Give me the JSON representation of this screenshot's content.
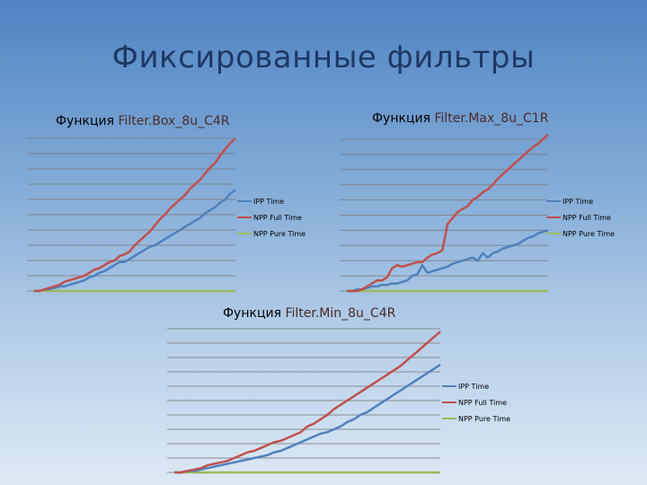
{
  "slide": {
    "title": "Фиксированные фильтры"
  },
  "colors": {
    "ipp": "#4f81bd",
    "npp_full": "#c0504d",
    "npp_pure": "#9bbb59",
    "grid": "#7f7f7f"
  },
  "chart_data": [
    {
      "type": "line",
      "title_prefix": "Функция ",
      "title_name": "Filter.Box_8u_C4R",
      "xlabel": "",
      "ylabel": "",
      "ylim": [
        0,
        100
      ],
      "grid": true,
      "legend_position": "right",
      "series": [
        {
          "name": "IPP Time",
          "color": "#4f81bd",
          "values": [
            0,
            0,
            1,
            1,
            2,
            3,
            3,
            4,
            5,
            6,
            7,
            9,
            10,
            12,
            13,
            15,
            17,
            19,
            19,
            21,
            23,
            25,
            27,
            29,
            30,
            32,
            34,
            36,
            38,
            40,
            42,
            44,
            46,
            48,
            51,
            53,
            55,
            58,
            60,
            64,
            66
          ]
        },
        {
          "name": "NPP Full Time",
          "color": "#c0504d",
          "values": [
            0,
            0,
            1,
            2,
            3,
            4,
            6,
            7,
            8,
            9,
            10,
            12,
            14,
            15,
            17,
            19,
            20,
            23,
            24,
            26,
            30,
            33,
            36,
            39,
            43,
            47,
            50,
            54,
            57,
            60,
            63,
            67,
            70,
            73,
            77,
            81,
            84,
            89,
            93,
            97,
            100
          ]
        },
        {
          "name": "NPP Pure Time",
          "color": "#9bbb59",
          "values": [
            0,
            0,
            0,
            0,
            0,
            0,
            0,
            0,
            0,
            0,
            0,
            0,
            0,
            0,
            0,
            0,
            0,
            0,
            0,
            0,
            0,
            0,
            0,
            0,
            0,
            0,
            0,
            0,
            0,
            0,
            0,
            0,
            0,
            0,
            0,
            0,
            0,
            0,
            0,
            0,
            0
          ]
        }
      ]
    },
    {
      "type": "line",
      "title_prefix": "Функция ",
      "title_name": "Filter.Max_8u_C1R",
      "xlabel": "",
      "ylabel": "",
      "ylim": [
        0,
        100
      ],
      "grid": true,
      "legend_position": "right",
      "series": [
        {
          "name": "IPP Time",
          "color": "#4f81bd",
          "values": [
            0,
            0,
            1,
            1,
            2,
            3,
            3,
            4,
            4,
            5,
            5,
            6,
            7,
            10,
            11,
            17,
            12,
            13,
            14,
            15,
            16,
            18,
            19,
            20,
            21,
            22,
            20,
            25,
            22,
            25,
            26,
            28,
            29,
            30,
            31,
            33,
            35,
            36,
            38,
            39,
            40
          ]
        },
        {
          "name": "NPP Full Time",
          "color": "#c0504d",
          "values": [
            0,
            0,
            0,
            1,
            3,
            5,
            7,
            7,
            9,
            15,
            17,
            16,
            17,
            18,
            19,
            19,
            22,
            24,
            25,
            27,
            44,
            48,
            52,
            54,
            56,
            60,
            62,
            65,
            67,
            70,
            74,
            77,
            80,
            83,
            86,
            89,
            92,
            95,
            97,
            100,
            103
          ]
        },
        {
          "name": "NPP Pure Time",
          "color": "#9bbb59",
          "values": [
            0,
            0,
            0,
            0,
            0,
            0,
            0,
            0,
            0,
            0,
            0,
            0,
            0,
            0,
            0,
            0,
            0,
            0,
            0,
            0,
            0,
            0,
            0,
            0,
            0,
            0,
            0,
            0,
            0,
            0,
            0,
            0,
            0,
            0,
            0,
            0,
            0,
            0,
            0,
            0,
            0
          ]
        }
      ]
    },
    {
      "type": "line",
      "title_prefix": "Функция ",
      "title_name": "Filter.Min_8u_C4R",
      "xlabel": "",
      "ylabel": "",
      "ylim": [
        0,
        100
      ],
      "grid": true,
      "legend_position": "right",
      "series": [
        {
          "name": "IPP Time",
          "color": "#4f81bd",
          "values": [
            0,
            0,
            1,
            1,
            2,
            3,
            4,
            5,
            6,
            7,
            8,
            9,
            10,
            11,
            12,
            14,
            15,
            17,
            19,
            21,
            23,
            25,
            27,
            28,
            30,
            32,
            35,
            37,
            40,
            42,
            45,
            48,
            51,
            54,
            57,
            60,
            63,
            66,
            69,
            72,
            75
          ]
        },
        {
          "name": "NPP Full Time",
          "color": "#c0504d",
          "values": [
            0,
            0,
            1,
            2,
            3,
            5,
            6,
            7,
            8,
            10,
            12,
            14,
            15,
            17,
            19,
            21,
            22,
            24,
            26,
            28,
            32,
            34,
            37,
            40,
            44,
            47,
            50,
            53,
            56,
            59,
            62,
            65,
            68,
            71,
            74,
            78,
            82,
            86,
            90,
            94,
            98
          ]
        },
        {
          "name": "NPP Pure Time",
          "color": "#9bbb59",
          "values": [
            0,
            0,
            0,
            0,
            0,
            0,
            0,
            0,
            0,
            0,
            0,
            0,
            0,
            0,
            0,
            0,
            0,
            0,
            0,
            0,
            0,
            0,
            0,
            0,
            0,
            0,
            0,
            0,
            0,
            0,
            0,
            0,
            0,
            0,
            0,
            0,
            0,
            0,
            0,
            0,
            0
          ]
        }
      ]
    }
  ]
}
